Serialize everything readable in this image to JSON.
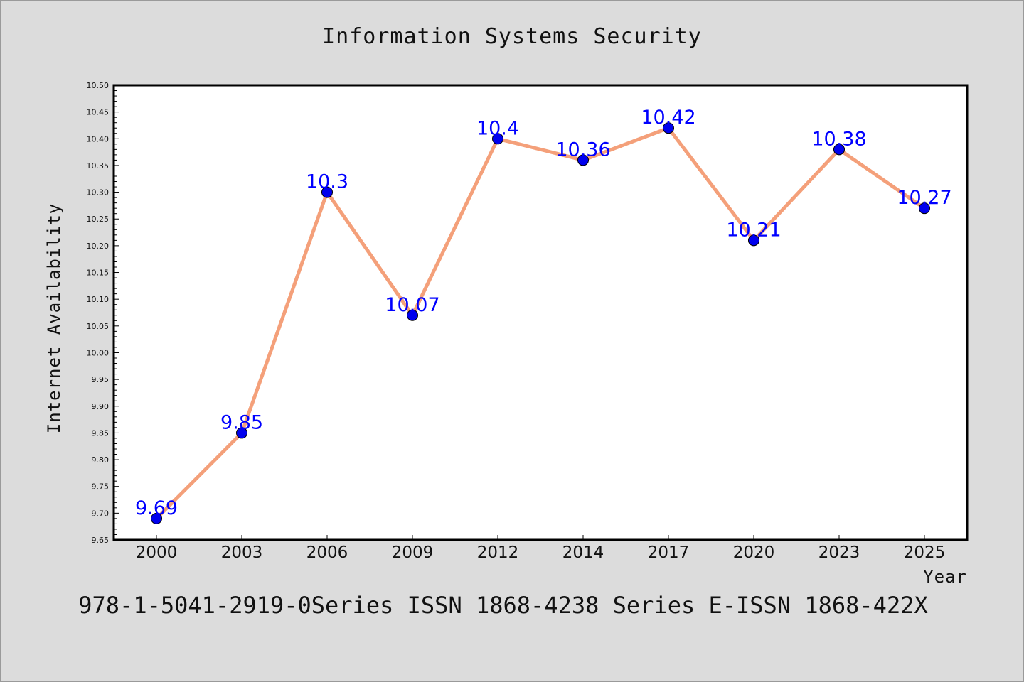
{
  "chart_data": {
    "type": "line",
    "title": "Information Systems Security",
    "xlabel": "Year",
    "ylabel": "Internet Availability",
    "categories": [
      "2000",
      "2003",
      "2006",
      "2009",
      "2012",
      "2014",
      "2017",
      "2020",
      "2023",
      "2025"
    ],
    "series": [
      {
        "values": [
          9.69,
          9.85,
          10.3,
          10.07,
          10.4,
          10.36,
          10.42,
          10.21,
          10.38,
          10.27
        ]
      }
    ],
    "data_labels": [
      "9.69",
      "9.85",
      "10.3",
      "10.07",
      "10.4",
      "10.36",
      "10.42",
      "10.21",
      "10.38",
      "10.27"
    ],
    "ylim": [
      9.65,
      10.5
    ],
    "yticks": [
      "9.65",
      "9.70",
      "9.75",
      "9.80",
      "9.85",
      "9.90",
      "9.95",
      "10.00",
      "10.05",
      "10.10",
      "10.15",
      "10.20",
      "10.25",
      "10.30",
      "10.35",
      "10.40",
      "10.45",
      "10.50"
    ],
    "grid": false,
    "legend": "none",
    "colors": {
      "line": "#f4a07a",
      "marker": "#0000ee",
      "marker_edge": "#000000",
      "data_label": "#0000ff",
      "plot_background": "#ffffff",
      "figure_background": "#dcdcdc"
    }
  },
  "footer_text": "978-1-5041-2919-0Series ISSN 1868-4238 Series E-ISSN 1868-422X"
}
